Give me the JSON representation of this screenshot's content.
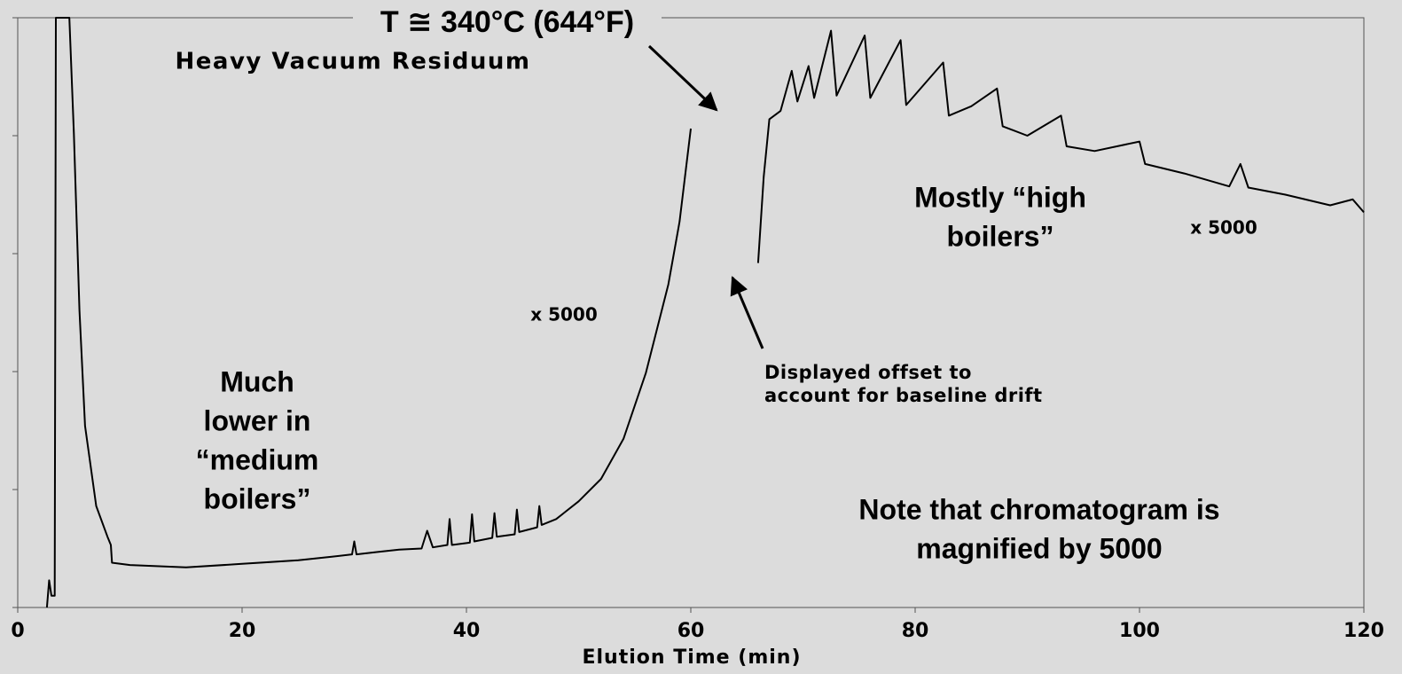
{
  "chart_data": {
    "type": "line",
    "title": "T ≅ 340°C (644°F)",
    "x_label": "Elution Time (min)",
    "xlim": [
      0,
      120
    ],
    "xticks": [
      0,
      20,
      40,
      60,
      80,
      100,
      120
    ],
    "ylim": [
      0,
      5
    ],
    "yticks": [
      0,
      1,
      2,
      3,
      4,
      5
    ],
    "annotations": [
      {
        "text": [
          "Heavy Vacuum Residuum"
        ]
      },
      {
        "text": [
          "x 5000"
        ]
      },
      {
        "text": [
          "Much",
          "lower  in",
          "“medium",
          "boilers”"
        ]
      },
      {
        "text": [
          "Mostly “high",
          "boilers”"
        ]
      },
      {
        "text": [
          "x 5000"
        ]
      },
      {
        "text": [
          "Displayed offset to",
          "account for baseline drift"
        ]
      },
      {
        "text": [
          "Note that chromatogram is",
          "magnified by 5000"
        ]
      }
    ],
    "series": [
      {
        "color": "#000000",
        "x": [
          2.6,
          2.8,
          3.0,
          3.3,
          3.4,
          4.6,
          5,
          5.5,
          6,
          7,
          8,
          8.3,
          8.4,
          10,
          15,
          20,
          25,
          28,
          29.8,
          30,
          30.2,
          32,
          34,
          36,
          36.5,
          37,
          38.3,
          38.5,
          38.7,
          40.3,
          40.5,
          40.7,
          42.3,
          42.5,
          42.7,
          44.3,
          44.5,
          44.7,
          46.3,
          46.5,
          46.7,
          48,
          50,
          52,
          54,
          56,
          58,
          59,
          60,
          63,
          66,
          66.5,
          67,
          68,
          69,
          69.5,
          70.5,
          71,
          72.5,
          73,
          75.5,
          76,
          78.7,
          79.2,
          82.5,
          83,
          85,
          87.3,
          87.8,
          90,
          93,
          93.5,
          96,
          100,
          100.5,
          104,
          108,
          109,
          109.7,
          113,
          117,
          119,
          120
        ],
        "values": [
          0,
          0.23,
          0.1,
          0.1,
          5,
          5,
          4.02,
          2.52,
          1.54,
          0.86,
          0.6,
          0.53,
          0.38,
          0.36,
          0.34,
          0.37,
          0.4,
          0.43,
          0.45,
          0.56,
          0.45,
          0.47,
          0.49,
          0.5,
          0.65,
          0.51,
          0.53,
          0.75,
          0.53,
          0.55,
          0.79,
          0.56,
          0.59,
          0.8,
          0.6,
          0.62,
          0.83,
          0.64,
          0.68,
          0.86,
          0.7,
          0.75,
          0.9,
          1.09,
          1.43,
          1.99,
          2.74,
          3.27,
          4.06,
          null,
          2.92,
          3.65,
          4.14,
          4.21,
          4.55,
          4.29,
          4.59,
          4.32,
          4.89,
          4.34,
          4.85,
          4.32,
          4.81,
          4.26,
          4.62,
          4.17,
          4.25,
          4.4,
          4.08,
          4.0,
          4.17,
          3.91,
          3.87,
          3.95,
          3.76,
          3.68,
          3.57,
          3.76,
          3.56,
          3.5,
          3.41,
          3.46,
          3.35
        ]
      }
    ]
  }
}
